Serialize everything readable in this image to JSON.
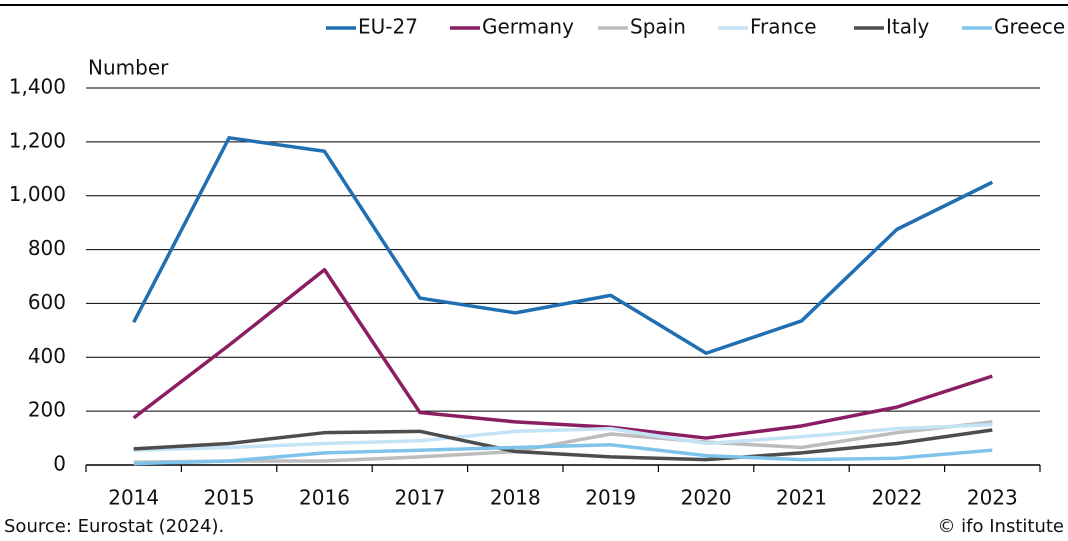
{
  "chart_data": {
    "type": "line",
    "y_label": "Number",
    "source": "Source: Eurostat (2024).",
    "credit": "© ifo Institute",
    "categories": [
      "2014",
      "2015",
      "2016",
      "2017",
      "2018",
      "2019",
      "2020",
      "2021",
      "2022",
      "2023"
    ],
    "series": [
      {
        "name": "EU-27",
        "color": "#1f6fb2",
        "values": [
          530,
          1215,
          1165,
          620,
          565,
          630,
          415,
          535,
          875,
          1050
        ]
      },
      {
        "name": "Germany",
        "color": "#8b1e63",
        "values": [
          175,
          445,
          725,
          195,
          160,
          140,
          100,
          145,
          215,
          330
        ]
      },
      {
        "name": "Spain",
        "color": "#bdbdbd",
        "values": [
          10,
          15,
          15,
          30,
          50,
          115,
          85,
          65,
          120,
          160
        ]
      },
      {
        "name": "France",
        "color": "#c5e3f6",
        "values": [
          55,
          65,
          80,
          90,
          125,
          135,
          80,
          105,
          135,
          150
        ]
      },
      {
        "name": "Italy",
        "color": "#4d4d4d",
        "values": [
          60,
          80,
          120,
          125,
          50,
          30,
          20,
          45,
          80,
          130
        ]
      },
      {
        "name": "Greece",
        "color": "#7ec4ea",
        "values": [
          5,
          15,
          45,
          55,
          65,
          75,
          35,
          20,
          25,
          55
        ]
      }
    ],
    "ylim": [
      0,
      1400
    ],
    "yticks": [
      0,
      200,
      400,
      600,
      800,
      {
        "value": 1000,
        "label": "1,000"
      },
      {
        "value": 1200,
        "label": "1,200"
      },
      {
        "value": 1400,
        "label": "1,400"
      }
    ],
    "grid": true
  }
}
